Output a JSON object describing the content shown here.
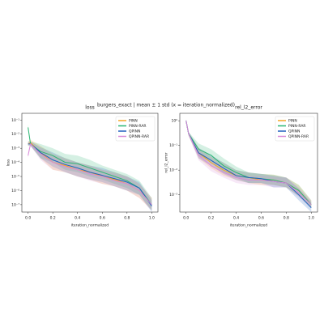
{
  "figure": {
    "title": "burgers_exact | mean ± 1 std (x = iteration_normalized)"
  },
  "chart_data": [
    {
      "type": "line",
      "title": "loss",
      "x_label": "iteration_normalized",
      "y_label": "loss",
      "log_y": true,
      "legend": "upper right",
      "x": [
        0,
        0.02,
        0.1,
        0.2,
        0.3,
        0.4,
        0.5,
        0.6,
        0.7,
        0.8,
        0.9,
        1.0
      ],
      "xlim": [
        -0.05,
        1.05
      ],
      "xticks": [
        {
          "value": 0,
          "label": "0.0"
        },
        0.2,
        0.4,
        0.6,
        0.8,
        {
          "value": 1,
          "label": "1.0"
        }
      ],
      "ylim": [
        3e-08,
        0.3
      ],
      "yticks": [
        {
          "value": 0.1,
          "label": "10⁻¹"
        },
        {
          "value": 0.01,
          "label": "10⁻²"
        },
        {
          "value": 0.001,
          "label": "10⁻³"
        },
        {
          "value": 0.0001,
          "label": "10⁻⁴"
        },
        {
          "value": 1e-05,
          "label": "10⁻⁵"
        },
        {
          "value": 1e-06,
          "label": "10⁻⁶"
        },
        {
          "value": 1e-07,
          "label": "10⁻⁷"
        }
      ],
      "series": [
        {
          "name": "PINN",
          "color": "#f5a623",
          "values": [
            0.002,
            0.0025,
            0.0005,
            0.0001,
            6e-05,
            3e-05,
            2e-05,
            1e-05,
            6e-06,
            3e-06,
            1e-06,
            1e-07
          ],
          "lower": [
            0.0015,
            0.0015,
            0.0002,
            3e-05,
            2e-05,
            1e-05,
            6e-06,
            3e-06,
            2e-06,
            1e-06,
            3e-07,
            4e-08
          ],
          "upper": [
            0.003,
            0.004,
            0.0015,
            0.0004,
            0.0002,
            0.0001,
            6e-05,
            3e-05,
            2e-05,
            1e-05,
            3e-06,
            3e-07
          ]
        },
        {
          "name": "PINN-RAR",
          "color": "#2bb673",
          "values": [
            0.03,
            0.002,
            0.0006,
            0.0003,
            0.0001,
            8e-05,
            4e-05,
            2e-05,
            1e-05,
            5e-06,
            1.5e-06,
            1e-07
          ],
          "lower": [
            0.02,
            0.0015,
            0.0002,
            0.0001,
            3e-05,
            2e-05,
            1e-05,
            6e-06,
            3e-06,
            1.5e-06,
            5e-07,
            4e-08
          ],
          "upper": [
            0.05,
            0.003,
            0.002,
            0.001,
            0.0004,
            0.0003,
            0.00015,
            6e-05,
            3e-05,
            1.5e-05,
            5e-06,
            3e-07
          ]
        },
        {
          "name": "QPINN",
          "color": "#1f5fbf",
          "values": [
            0.002,
            0.002,
            0.0005,
            0.00015,
            7e-05,
            4e-05,
            2e-05,
            1.2e-05,
            7e-06,
            4e-06,
            1.5e-06,
            8e-08
          ],
          "lower": [
            0.0015,
            0.0015,
            0.0002,
            5e-05,
            2e-05,
            1e-05,
            6e-06,
            4e-06,
            2e-06,
            1e-06,
            5e-07,
            3e-08
          ],
          "upper": [
            0.003,
            0.003,
            0.0012,
            0.0005,
            0.0002,
            0.0001,
            6e-05,
            4e-05,
            2e-05,
            1e-05,
            4e-06,
            2e-07
          ]
        },
        {
          "name": "QPINN-RAR",
          "color": "#d98ad9",
          "values": [
            0.0003,
            0.002,
            0.0004,
            0.0001,
            5e-05,
            3e-05,
            1.5e-05,
            1e-05,
            5e-06,
            3e-06,
            1e-06,
            1e-07
          ],
          "lower": [
            0.0002,
            0.0015,
            0.00015,
            3e-05,
            2e-05,
            1e-05,
            5e-06,
            3e-06,
            2e-06,
            1e-06,
            3e-07,
            4e-08
          ],
          "upper": [
            0.0005,
            0.003,
            0.001,
            0.0003,
            0.00015,
            0.0001,
            5e-05,
            3e-05,
            1.5e-05,
            1e-05,
            3e-06,
            3e-07
          ]
        }
      ]
    },
    {
      "type": "line",
      "title": "rel_l2_error",
      "x_label": "iteration_normalized",
      "y_label": "rel_l2_error",
      "log_y": true,
      "legend": "upper right",
      "x": [
        0,
        0.02,
        0.1,
        0.2,
        0.3,
        0.4,
        0.5,
        0.6,
        0.7,
        0.8,
        0.9,
        1.0
      ],
      "xlim": [
        -0.05,
        1.05
      ],
      "xticks": [
        {
          "value": 0,
          "label": "0.0"
        },
        0.2,
        0.4,
        0.6,
        0.8,
        {
          "value": 1,
          "label": "1.0"
        }
      ],
      "ylim": [
        0.0002,
        2
      ],
      "yticks": [
        {
          "value": 1,
          "label": "10⁰"
        },
        {
          "value": 0.1,
          "label": "10⁻¹"
        },
        {
          "value": 0.01,
          "label": "10⁻²"
        },
        {
          "value": 0.001,
          "label": "10⁻³"
        }
      ],
      "series": [
        {
          "name": "PINN",
          "color": "#f5a623",
          "values": [
            1,
            0.3,
            0.05,
            0.02,
            0.01,
            0.006,
            0.005,
            0.004,
            0.004,
            0.003,
            0.0015,
            0.0004
          ],
          "lower": [
            0.9,
            0.25,
            0.03,
            0.012,
            0.006,
            0.004,
            0.003,
            0.0025,
            0.0025,
            0.002,
            0.0009,
            0.0003
          ],
          "upper": [
            1.1,
            0.35,
            0.08,
            0.035,
            0.02,
            0.01,
            0.008,
            0.007,
            0.0065,
            0.005,
            0.0025,
            0.0006
          ]
        },
        {
          "name": "PINN-RAR",
          "color": "#2bb673",
          "values": [
            1,
            0.3,
            0.07,
            0.04,
            0.015,
            0.008,
            0.005,
            0.0045,
            0.004,
            0.003,
            0.0015,
            0.0004
          ],
          "lower": [
            0.9,
            0.25,
            0.04,
            0.02,
            0.008,
            0.005,
            0.003,
            0.003,
            0.0025,
            0.002,
            0.0009,
            0.0003
          ],
          "upper": [
            1.1,
            0.35,
            0.12,
            0.07,
            0.03,
            0.014,
            0.008,
            0.007,
            0.0065,
            0.005,
            0.0025,
            0.0006
          ]
        },
        {
          "name": "QPINN",
          "color": "#1f5fbf",
          "values": [
            1,
            0.3,
            0.05,
            0.025,
            0.012,
            0.006,
            0.005,
            0.0045,
            0.0035,
            0.003,
            0.001,
            0.0003
          ],
          "lower": [
            0.9,
            0.25,
            0.03,
            0.015,
            0.007,
            0.004,
            0.003,
            0.003,
            0.002,
            0.002,
            0.0006,
            0.0002
          ],
          "upper": [
            1.1,
            0.35,
            0.08,
            0.04,
            0.02,
            0.01,
            0.008,
            0.007,
            0.006,
            0.005,
            0.0018,
            0.0005
          ]
        },
        {
          "name": "QPINN-RAR",
          "color": "#d98ad9",
          "values": [
            1,
            0.3,
            0.04,
            0.015,
            0.008,
            0.005,
            0.004,
            0.004,
            0.0035,
            0.003,
            0.0012,
            0.0004
          ],
          "lower": [
            0.9,
            0.25,
            0.025,
            0.009,
            0.005,
            0.003,
            0.0025,
            0.0025,
            0.002,
            0.002,
            0.0008,
            0.0003
          ],
          "upper": [
            1.1,
            0.35,
            0.06,
            0.025,
            0.013,
            0.008,
            0.006,
            0.006,
            0.0055,
            0.005,
            0.002,
            0.0006
          ]
        }
      ]
    }
  ]
}
